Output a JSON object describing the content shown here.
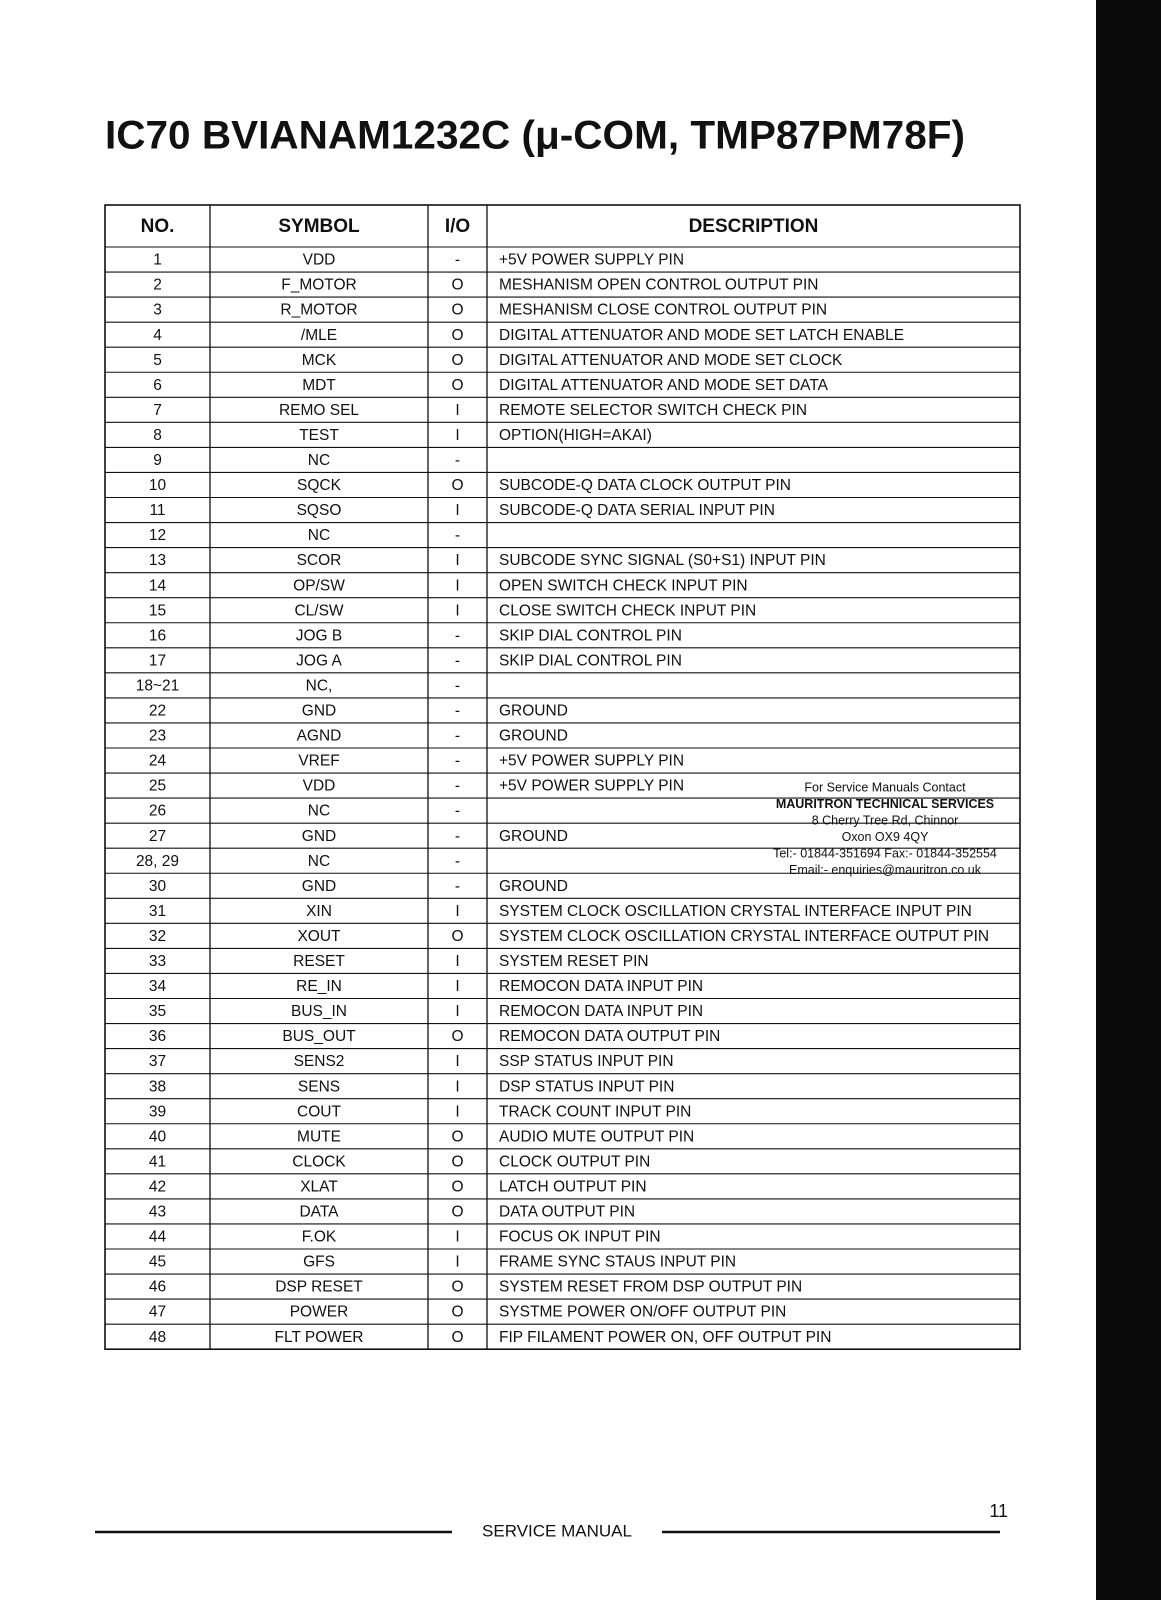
{
  "header": {
    "title": "IC70 BVIANAM1232C (μ-COM, TMP87PM78F)"
  },
  "table": {
    "header": [
      "NO.",
      "SYMBOL",
      "I/O",
      "DESCRIPTION"
    ],
    "rows": [
      [
        "1",
        "VDD",
        "-",
        "+5V POWER SUPPLY PIN"
      ],
      [
        "2",
        "F_MOTOR",
        "O",
        "MESHANISM OPEN CONTROL OUTPUT PIN"
      ],
      [
        "3",
        "R_MOTOR",
        "O",
        "MESHANISM CLOSE CONTROL OUTPUT PIN"
      ],
      [
        "4",
        "/MLE",
        "O",
        "DIGITAL ATTENUATOR AND MODE SET LATCH ENABLE"
      ],
      [
        "5",
        "MCK",
        "O",
        "DIGITAL ATTENUATOR AND MODE SET CLOCK"
      ],
      [
        "6",
        "MDT",
        "O",
        "DIGITAL ATTENUATOR AND MODE SET DATA"
      ],
      [
        "7",
        "REMO SEL",
        "I",
        "REMOTE SELECTOR SWITCH CHECK PIN"
      ],
      [
        "8",
        "TEST",
        "I",
        "OPTION(HIGH=AKAI)"
      ],
      [
        "9",
        "NC",
        "-",
        null
      ],
      [
        "10",
        "SQCK",
        "O",
        "SUBCODE-Q DATA CLOCK OUTPUT PIN"
      ],
      [
        "11",
        "SQSO",
        "I",
        "SUBCODE-Q DATA SERIAL INPUT PIN"
      ],
      [
        "12",
        "NC",
        "-",
        null
      ],
      [
        "13",
        "SCOR",
        "I",
        "SUBCODE SYNC SIGNAL (S0+S1) INPUT PIN"
      ],
      [
        "14",
        "OP/SW",
        "I",
        "OPEN SWITCH CHECK INPUT PIN"
      ],
      [
        "15",
        "CL/SW",
        "I",
        "CLOSE SWITCH CHECK INPUT PIN"
      ],
      [
        "16",
        "JOG B",
        "-",
        "SKIP DIAL CONTROL PIN"
      ],
      [
        "17",
        "JOG A",
        "-",
        "SKIP DIAL CONTROL PIN"
      ],
      [
        "18~21",
        "NC,",
        "-",
        null
      ],
      [
        "22",
        "GND",
        "-",
        "GROUND"
      ],
      [
        "23",
        "AGND",
        "-",
        "GROUND"
      ],
      [
        "24",
        "VREF",
        "-",
        "+5V POWER SUPPLY PIN"
      ],
      [
        "25",
        "VDD",
        "-",
        "+5V POWER SUPPLY PIN"
      ],
      [
        "26",
        "NC",
        "-",
        null
      ],
      [
        "27",
        "GND",
        "-",
        "GROUND"
      ],
      [
        "28, 29",
        "NC",
        "-",
        null
      ],
      [
        "30",
        "GND",
        "-",
        "GROUND"
      ],
      [
        "31",
        "XIN",
        "I",
        "SYSTEM CLOCK OSCILLATION CRYSTAL INTERFACE INPUT PIN"
      ],
      [
        "32",
        "XOUT",
        "O",
        "SYSTEM CLOCK OSCILLATION CRYSTAL INTERFACE OUTPUT PIN"
      ],
      [
        "33",
        "RESET",
        "I",
        "SYSTEM RESET PIN"
      ],
      [
        "34",
        "RE_IN",
        "I",
        "REMOCON DATA INPUT PIN"
      ],
      [
        "35",
        "BUS_IN",
        "I",
        "REMOCON DATA INPUT PIN"
      ],
      [
        "36",
        "BUS_OUT",
        "O",
        "REMOCON DATA OUTPUT PIN"
      ],
      [
        "37",
        "SENS2",
        "I",
        "SSP STATUS INPUT PIN"
      ],
      [
        "38",
        "SENS",
        "I",
        "DSP STATUS INPUT PIN"
      ],
      [
        "39",
        "COUT",
        "I",
        "TRACK COUNT INPUT PIN"
      ],
      [
        "40",
        "MUTE",
        "O",
        "AUDIO MUTE OUTPUT PIN"
      ],
      [
        "41",
        "CLOCK",
        "O",
        "CLOCK OUTPUT PIN"
      ],
      [
        "42",
        "XLAT",
        "O",
        "LATCH OUTPUT PIN"
      ],
      [
        "43",
        "DATA",
        "O",
        "DATA OUTPUT PIN"
      ],
      [
        "44",
        "F.OK",
        "I",
        "FOCUS OK INPUT PIN"
      ],
      [
        "45",
        "GFS",
        "I",
        "FRAME SYNC STAUS INPUT PIN"
      ],
      [
        "46",
        "DSP RESET",
        "O",
        "SYSTEM RESET FROM DSP OUTPUT PIN"
      ],
      [
        "47",
        "POWER",
        "O",
        "SYSTME POWER ON/OFF OUTPUT PIN"
      ],
      [
        "48",
        "FLT POWER",
        "O",
        "FIP FILAMENT POWER ON, OFF OUTPUT PIN"
      ]
    ]
  },
  "stamp": {
    "lines": [
      "For Service Manuals Contact",
      "MAURITRON TECHNICAL SERVICES",
      "8 Cherry Tree Rd, Chinnor",
      "Oxon OX9 4QY",
      "Tel:- 01844-351694 Fax:- 01844-352554",
      "Email:- enquiries@mauritron.co.uk"
    ]
  },
  "footer": {
    "page_number": "11",
    "label": "SERVICE MANUAL"
  }
}
